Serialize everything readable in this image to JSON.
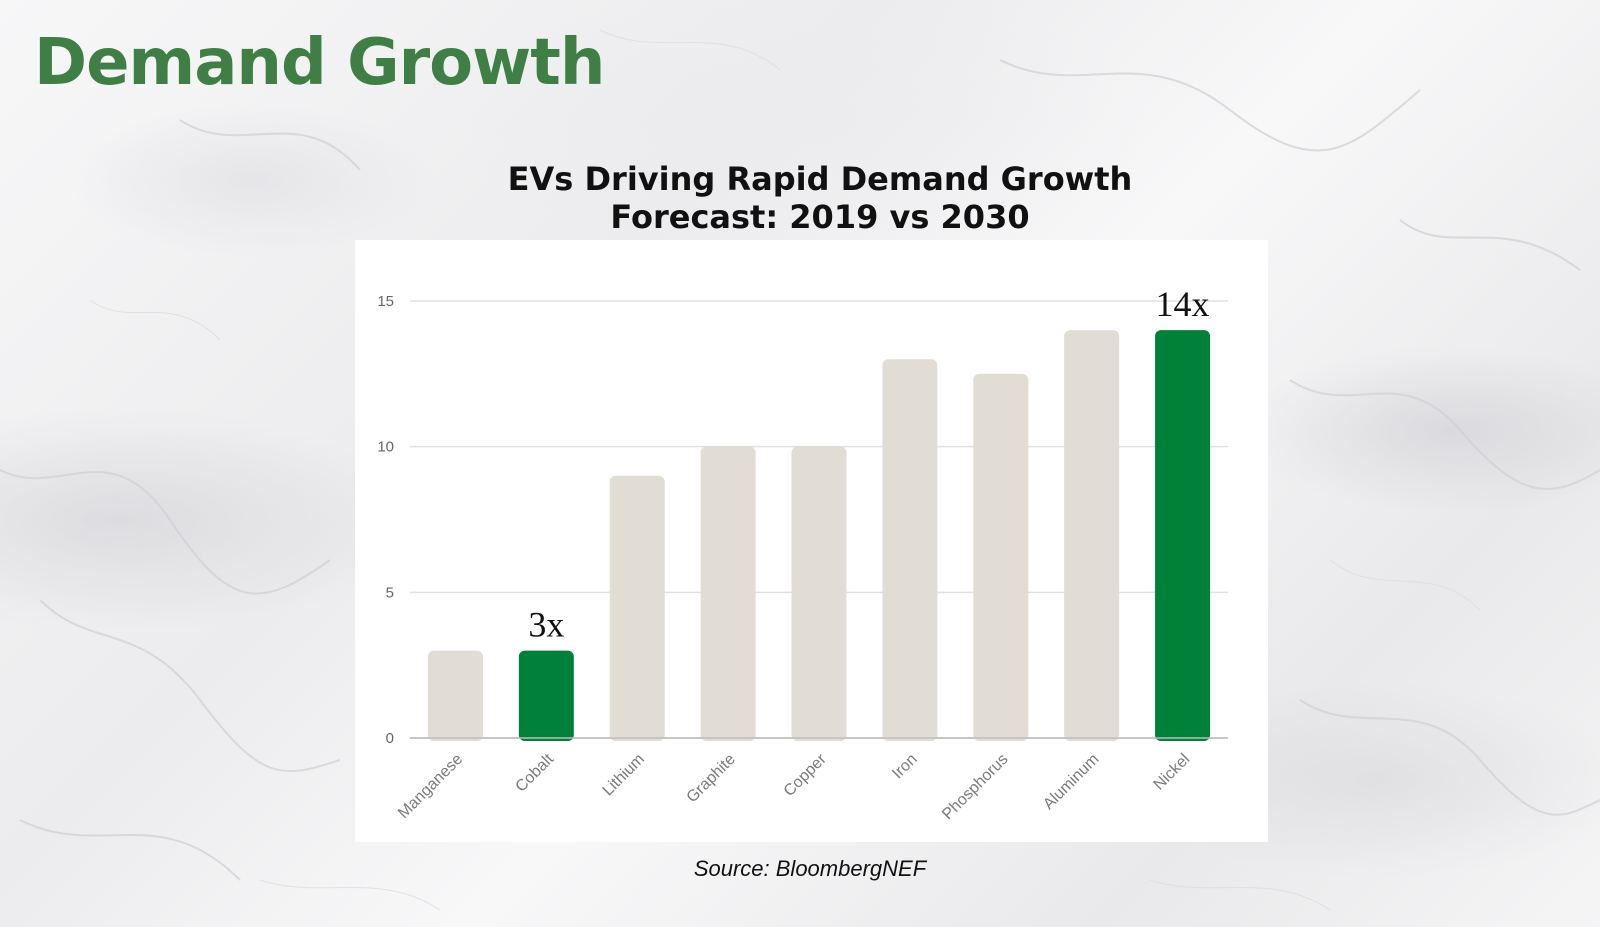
{
  "page": {
    "title": "Demand Growth",
    "source": "Source: BloombergNEF",
    "colors": {
      "title": "#3f7f45",
      "highlight_bar": "#00813a",
      "bar": "#e2ddd4",
      "gridline": "#e0e0e0"
    }
  },
  "chart_data": {
    "type": "bar",
    "title": "EVs Driving Rapid Demand Growth",
    "subtitle": "Forecast: 2019 vs 2030",
    "xlabel": "",
    "ylabel": "",
    "ylim": [
      0,
      15
    ],
    "yticks": [
      0,
      5,
      10,
      15
    ],
    "grid": true,
    "categories": [
      "Manganese",
      "Cobalt",
      "Lithium",
      "Graphite",
      "Copper",
      "Iron",
      "Phosphorus",
      "Aluminum",
      "Nickel"
    ],
    "values": [
      3,
      3,
      9,
      10,
      10,
      13,
      12.5,
      14,
      14
    ],
    "highlighted": [
      "Cobalt",
      "Nickel"
    ],
    "annotations": [
      {
        "category": "Cobalt",
        "text": "3x"
      },
      {
        "category": "Nickel",
        "text": "14x"
      }
    ]
  }
}
